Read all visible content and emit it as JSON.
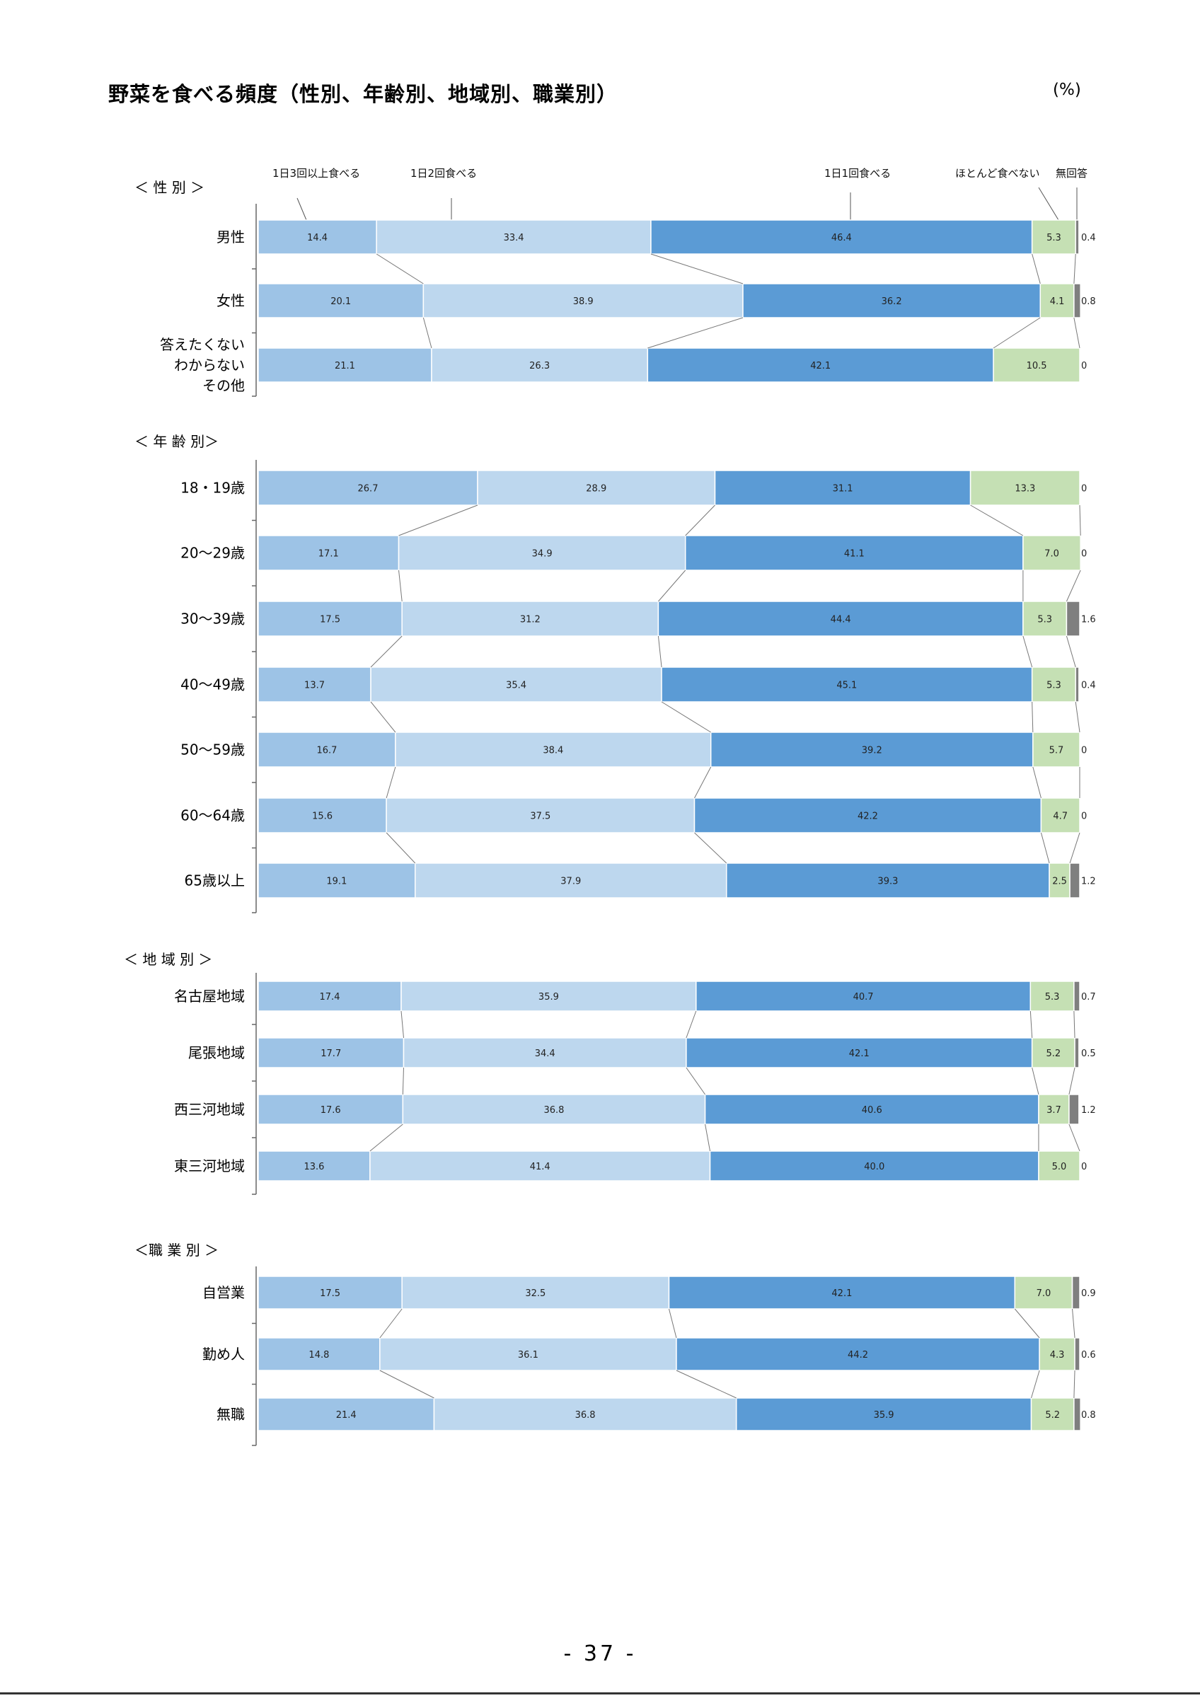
{
  "header": {
    "title": "野菜を食べる頻度（性別、年齢別、地域別、職業別）",
    "unit": "(%)"
  },
  "footer": {
    "page_number": "- 37 -"
  },
  "colors": [
    "#9dc3e6",
    "#bdd7ee",
    "#5b9bd5",
    "#c5e0b4",
    "#7f7f7f"
  ],
  "chart_data": {
    "type": "bar",
    "stacked": true,
    "orientation": "horizontal",
    "title": "野菜を食べる頻度（性別、年齢別、地域別、職業別）",
    "series_names": [
      "1日3回以上食べる",
      "1日2回食べる",
      "1日1回食べる",
      "ほとんど食べない",
      "無回答"
    ],
    "xlim": [
      0,
      100
    ],
    "groups": [
      {
        "label": "＜ 性 別 ＞",
        "rows": [
          {
            "label": [
              "男性"
            ],
            "values": [
              14.4,
              33.4,
              46.4,
              5.3,
              0.4
            ],
            "labels": [
              "14.4",
              "33.4",
              "46.4",
              "5.3",
              "0.4"
            ]
          },
          {
            "label": [
              "女性"
            ],
            "values": [
              20.1,
              38.9,
              36.2,
              4.1,
              0.8
            ],
            "labels": [
              "20.1",
              "38.9",
              "36.2",
              "4.1",
              "0.8"
            ]
          },
          {
            "label": [
              "答えたくない",
              "わからない",
              "その他"
            ],
            "values": [
              21.1,
              26.3,
              42.1,
              10.5,
              0
            ],
            "labels": [
              "21.1",
              "26.3",
              "42.1",
              "10.5",
              "0"
            ]
          }
        ]
      },
      {
        "label": "＜ 年 齢 別＞",
        "rows": [
          {
            "label": [
              "18・19歳"
            ],
            "values": [
              26.7,
              28.9,
              31.1,
              13.3,
              0
            ],
            "labels": [
              "26.7",
              "28.9",
              "31.1",
              "13.3",
              "0"
            ]
          },
          {
            "label": [
              "20～29歳"
            ],
            "values": [
              17.1,
              34.9,
              41.1,
              7.0,
              0
            ],
            "labels": [
              "17.1",
              "34.9",
              "41.1",
              "7.0",
              "0"
            ]
          },
          {
            "label": [
              "30～39歳"
            ],
            "values": [
              17.5,
              31.2,
              44.4,
              5.3,
              1.6
            ],
            "labels": [
              "17.5",
              "31.2",
              "44.4",
              "5.3",
              "1.6"
            ]
          },
          {
            "label": [
              "40～49歳"
            ],
            "values": [
              13.7,
              35.4,
              45.1,
              5.3,
              0.4
            ],
            "labels": [
              "13.7",
              "35.4",
              "45.1",
              "5.3",
              "0.4"
            ]
          },
          {
            "label": [
              "50～59歳"
            ],
            "values": [
              16.7,
              38.4,
              39.2,
              5.7,
              0
            ],
            "labels": [
              "16.7",
              "38.4",
              "39.2",
              "5.7",
              "0"
            ]
          },
          {
            "label": [
              "60～64歳"
            ],
            "values": [
              15.6,
              37.5,
              42.2,
              4.7,
              0
            ],
            "labels": [
              "15.6",
              "37.5",
              "42.2",
              "4.7",
              "0"
            ]
          },
          {
            "label": [
              "65歳以上"
            ],
            "values": [
              19.1,
              37.9,
              39.3,
              2.5,
              1.2
            ],
            "labels": [
              "19.1",
              "37.9",
              "39.3",
              "2.5",
              "1.2"
            ]
          }
        ]
      },
      {
        "label": "＜ 地 域 別 ＞",
        "rows": [
          {
            "label": [
              "名古屋地域"
            ],
            "values": [
              17.4,
              35.9,
              40.7,
              5.3,
              0.7
            ],
            "labels": [
              "17.4",
              "35.9",
              "40.7",
              "5.3",
              "0.7"
            ]
          },
          {
            "label": [
              "尾張地域"
            ],
            "values": [
              17.7,
              34.4,
              42.1,
              5.2,
              0.5
            ],
            "labels": [
              "17.7",
              "34.4",
              "42.1",
              "5.2",
              "0.5"
            ]
          },
          {
            "label": [
              "西三河地域"
            ],
            "values": [
              17.6,
              36.8,
              40.6,
              3.7,
              1.2
            ],
            "labels": [
              "17.6",
              "36.8",
              "40.6",
              "3.7",
              "1.2"
            ]
          },
          {
            "label": [
              "東三河地域"
            ],
            "values": [
              13.6,
              41.4,
              40.0,
              5.0,
              0
            ],
            "labels": [
              "13.6",
              "41.4",
              "40.0",
              "5.0",
              "0"
            ]
          }
        ]
      },
      {
        "label": "＜職 業 別 ＞",
        "rows": [
          {
            "label": [
              "自営業"
            ],
            "values": [
              17.5,
              32.5,
              42.1,
              7.0,
              0.9
            ],
            "labels": [
              "17.5",
              "32.5",
              "42.1",
              "7.0",
              "0.9"
            ]
          },
          {
            "label": [
              "勤め人"
            ],
            "values": [
              14.8,
              36.1,
              44.2,
              4.3,
              0.6
            ],
            "labels": [
              "14.8",
              "36.1",
              "44.2",
              "4.3",
              "0.6"
            ]
          },
          {
            "label": [
              "無職"
            ],
            "values": [
              21.4,
              36.8,
              35.9,
              5.2,
              0.8
            ],
            "labels": [
              "21.4",
              "36.8",
              "35.9",
              "5.2",
              "0.8"
            ]
          }
        ]
      }
    ]
  }
}
